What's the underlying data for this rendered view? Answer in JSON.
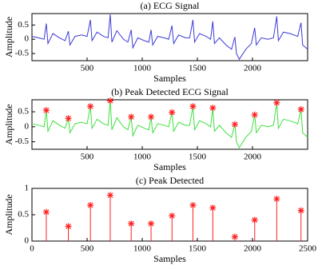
{
  "chart_data": [
    {
      "type": "line",
      "title": "(a) ECG Signal",
      "xlabel": "Samples",
      "ylabel": "Amplitude",
      "x": [
        0,
        60,
        110,
        130,
        145,
        190,
        250,
        300,
        330,
        345,
        390,
        450,
        500,
        530,
        545,
        590,
        650,
        690,
        710,
        725,
        770,
        830,
        870,
        900,
        915,
        960,
        1020,
        1060,
        1080,
        1095,
        1140,
        1200,
        1240,
        1270,
        1285,
        1330,
        1390,
        1430,
        1460,
        1475,
        1520,
        1580,
        1620,
        1640,
        1655,
        1700,
        1760,
        1810,
        1840,
        1855,
        1880,
        1940,
        1990,
        2020,
        2035,
        2080,
        2140,
        2190,
        2220,
        2235,
        2280,
        2340,
        2410,
        2440,
        2455,
        2500
      ],
      "series": [
        {
          "color": "#3b3bd8",
          "values": [
            0.1,
            0.05,
            0.0,
            0.55,
            -0.15,
            0.2,
            0.05,
            -0.05,
            0.28,
            -0.2,
            0.1,
            0.15,
            0.1,
            0.68,
            -0.05,
            0.25,
            0.1,
            0.05,
            0.87,
            -0.1,
            0.3,
            0.0,
            -0.1,
            0.33,
            -0.3,
            0.05,
            -0.05,
            -0.1,
            0.33,
            -0.2,
            0.1,
            0.05,
            0.0,
            0.48,
            -0.15,
            0.15,
            0.05,
            0.05,
            0.68,
            -0.1,
            0.2,
            0.1,
            0.0,
            0.63,
            -0.15,
            0.05,
            -0.2,
            -0.35,
            0.08,
            -0.5,
            -0.7,
            -0.35,
            -0.15,
            0.4,
            -0.2,
            0.05,
            0.0,
            0.05,
            0.8,
            -0.05,
            0.25,
            0.2,
            0.1,
            0.58,
            -0.2,
            -0.35
          ]
        }
      ],
      "xlim": [
        0,
        2500
      ],
      "xticks": [
        500,
        1000,
        1500,
        2000
      ],
      "ylim": [
        -0.75,
        0.9
      ],
      "yticks": [
        -0.5,
        0,
        0.5
      ]
    },
    {
      "type": "line",
      "title": "(b) Peak Detected ECG Signal",
      "xlabel": "Samples",
      "ylabel": "Amplitude",
      "x": [
        0,
        60,
        110,
        130,
        145,
        190,
        250,
        300,
        330,
        345,
        390,
        450,
        500,
        530,
        545,
        590,
        650,
        690,
        710,
        725,
        770,
        830,
        870,
        900,
        915,
        960,
        1020,
        1060,
        1080,
        1095,
        1140,
        1200,
        1240,
        1270,
        1285,
        1330,
        1390,
        1430,
        1460,
        1475,
        1520,
        1580,
        1620,
        1640,
        1655,
        1700,
        1760,
        1810,
        1840,
        1855,
        1880,
        1940,
        1990,
        2020,
        2035,
        2080,
        2140,
        2190,
        2220,
        2235,
        2280,
        2340,
        2410,
        2440,
        2455,
        2500
      ],
      "series": [
        {
          "color": "#3ee03e",
          "values": [
            0.1,
            0.05,
            0.0,
            0.55,
            -0.15,
            0.2,
            0.05,
            -0.05,
            0.28,
            -0.2,
            0.1,
            0.15,
            0.1,
            0.68,
            -0.05,
            0.25,
            0.1,
            0.05,
            0.87,
            -0.1,
            0.3,
            0.0,
            -0.1,
            0.33,
            -0.3,
            0.05,
            -0.05,
            -0.1,
            0.33,
            -0.2,
            0.1,
            0.05,
            0.0,
            0.48,
            -0.15,
            0.15,
            0.05,
            0.05,
            0.68,
            -0.1,
            0.2,
            0.1,
            0.0,
            0.63,
            -0.15,
            0.05,
            -0.2,
            -0.35,
            0.08,
            -0.5,
            -0.7,
            -0.35,
            -0.15,
            0.4,
            -0.2,
            0.05,
            0.0,
            0.05,
            0.8,
            -0.05,
            0.25,
            0.2,
            0.1,
            0.58,
            -0.2,
            -0.35
          ]
        }
      ],
      "peaks": {
        "color": "#ff2020",
        "x": [
          130,
          330,
          530,
          710,
          900,
          1080,
          1270,
          1460,
          1640,
          1840,
          2020,
          2220,
          2440
        ],
        "values": [
          0.55,
          0.28,
          0.68,
          0.87,
          0.33,
          0.33,
          0.48,
          0.68,
          0.63,
          0.08,
          0.4,
          0.8,
          0.58
        ]
      },
      "xlim": [
        0,
        2500
      ],
      "xticks": [
        500,
        1000,
        1500,
        2000
      ],
      "ylim": [
        -0.75,
        0.9
      ],
      "yticks": [
        -0.5,
        0,
        0.5
      ]
    },
    {
      "type": "stem",
      "title": "(c) Peak Detected",
      "xlabel": "Samples",
      "ylabel": "Amplitude",
      "x": [
        130,
        330,
        530,
        710,
        900,
        1080,
        1270,
        1460,
        1640,
        1840,
        2020,
        2220,
        2440
      ],
      "series": [
        {
          "color": "#ff2020",
          "values": [
            0.55,
            0.28,
            0.68,
            0.87,
            0.33,
            0.33,
            0.48,
            0.68,
            0.63,
            0.08,
            0.4,
            0.8,
            0.58
          ]
        }
      ],
      "xlim": [
        0,
        2500
      ],
      "xticks": [
        0,
        500,
        1000,
        1500,
        2000,
        2500
      ],
      "ylim": [
        0,
        1
      ],
      "yticks": [
        0,
        0.5,
        1
      ]
    }
  ]
}
